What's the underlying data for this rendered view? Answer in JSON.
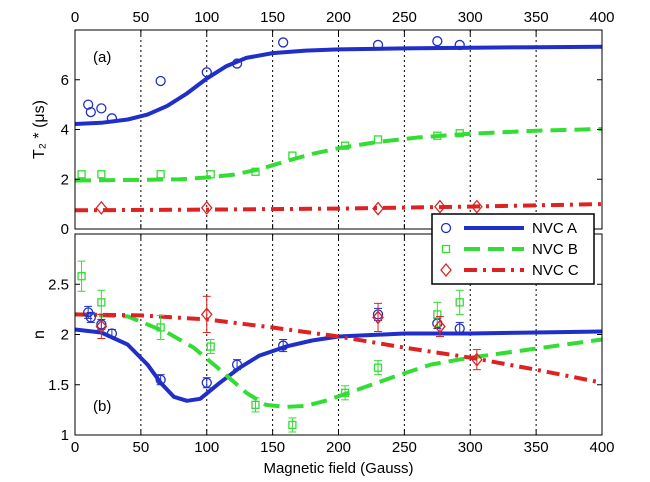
{
  "colors": {
    "nvc_a": "#1f2fc8",
    "nvc_b": "#33dd33",
    "nvc_c": "#dd2222",
    "axes": "#000000",
    "vgrid": "#000000"
  },
  "chart_data": [
    {
      "type": "scatter",
      "panel_label": "(a)",
      "xlabel": "",
      "ylabel": "T₂ * (μs)",
      "xlim": [
        0,
        400
      ],
      "ylim": [
        0,
        8
      ],
      "xticks": [
        "0",
        "50",
        "100",
        "150",
        "200",
        "250",
        "300",
        "350",
        "400"
      ],
      "yticks": [
        "0",
        "2",
        "4",
        "6"
      ],
      "x_ticks_on_top": true,
      "vertical_dotted_lines_at": [
        50,
        100,
        150,
        200,
        250,
        300,
        350
      ],
      "series": [
        {
          "key": "A",
          "marker": "circle",
          "points": [
            [
              10,
              5.0
            ],
            [
              12,
              4.7
            ],
            [
              20,
              4.85
            ],
            [
              28,
              4.45
            ],
            [
              65,
              5.95
            ],
            [
              100,
              6.3
            ],
            [
              123,
              6.65
            ],
            [
              158,
              7.5
            ],
            [
              230,
              7.4
            ],
            [
              275,
              7.55
            ],
            [
              292,
              7.4
            ]
          ],
          "fit": [
            [
              0,
              4.22
            ],
            [
              20,
              4.27
            ],
            [
              40,
              4.4
            ],
            [
              55,
              4.6
            ],
            [
              70,
              4.95
            ],
            [
              85,
              5.45
            ],
            [
              100,
              6.05
            ],
            [
              115,
              6.55
            ],
            [
              130,
              6.88
            ],
            [
              150,
              7.07
            ],
            [
              175,
              7.17
            ],
            [
              200,
              7.22
            ],
            [
              250,
              7.26
            ],
            [
              300,
              7.29
            ],
            [
              350,
              7.31
            ],
            [
              400,
              7.33
            ]
          ]
        },
        {
          "key": "B",
          "marker": "square",
          "points": [
            [
              5,
              2.2
            ],
            [
              20,
              2.2
            ],
            [
              65,
              2.2
            ],
            [
              103,
              2.2
            ],
            [
              137,
              2.3
            ],
            [
              165,
              2.95
            ],
            [
              205,
              3.35
            ],
            [
              230,
              3.6
            ],
            [
              275,
              3.75
            ],
            [
              292,
              3.85
            ]
          ],
          "fit": [
            [
              0,
              1.95
            ],
            [
              40,
              1.97
            ],
            [
              80,
              2.0
            ],
            [
              100,
              2.07
            ],
            [
              120,
              2.18
            ],
            [
              140,
              2.4
            ],
            [
              160,
              2.72
            ],
            [
              180,
              3.02
            ],
            [
              200,
              3.25
            ],
            [
              230,
              3.5
            ],
            [
              260,
              3.68
            ],
            [
              300,
              3.83
            ],
            [
              350,
              3.95
            ],
            [
              400,
              4.02
            ]
          ]
        },
        {
          "key": "C",
          "marker": "diamond",
          "points": [
            [
              20,
              0.85
            ],
            [
              100,
              0.85
            ],
            [
              230,
              0.82
            ],
            [
              277,
              0.9
            ],
            [
              305,
              0.9
            ]
          ],
          "fit": [
            [
              0,
              0.75
            ],
            [
              100,
              0.78
            ],
            [
              200,
              0.82
            ],
            [
              300,
              0.9
            ],
            [
              400,
              1.0
            ]
          ]
        }
      ]
    },
    {
      "type": "scatter",
      "panel_label": "(b)",
      "xlabel": "Magnetic field (Gauss)",
      "ylabel": "n",
      "xlim": [
        0,
        400
      ],
      "ylim": [
        1,
        3
      ],
      "xticks": [
        "0",
        "50",
        "100",
        "150",
        "200",
        "250",
        "300",
        "350",
        "400"
      ],
      "yticks": [
        "1",
        "1.5",
        "2",
        "2.5"
      ],
      "vertical_dotted_lines_at": [
        50,
        100,
        150,
        200,
        250,
        300,
        350
      ],
      "legend": {
        "location": "top-right",
        "entries": [
          "NVC A",
          "NVC B",
          "NVC C"
        ]
      },
      "series": [
        {
          "key": "A",
          "name": "NVC A",
          "marker": "circle",
          "points": [
            [
              10,
              2.22,
              0.06
            ],
            [
              12,
              2.17,
              0.05
            ],
            [
              20,
              2.1,
              0.05
            ],
            [
              28,
              2.01,
              0.04
            ],
            [
              65,
              1.55,
              0.05
            ],
            [
              100,
              1.52,
              0.05
            ],
            [
              123,
              1.7,
              0.05
            ],
            [
              158,
              1.89,
              0.06
            ],
            [
              230,
              2.2,
              0.06
            ],
            [
              275,
              2.11,
              0.05
            ],
            [
              292,
              2.06,
              0.06
            ]
          ],
          "fit": [
            [
              0,
              2.05
            ],
            [
              20,
              2.02
            ],
            [
              40,
              1.9
            ],
            [
              55,
              1.7
            ],
            [
              65,
              1.52
            ],
            [
              75,
              1.38
            ],
            [
              85,
              1.34
            ],
            [
              95,
              1.36
            ],
            [
              110,
              1.52
            ],
            [
              125,
              1.67
            ],
            [
              140,
              1.79
            ],
            [
              160,
              1.88
            ],
            [
              180,
              1.94
            ],
            [
              200,
              1.98
            ],
            [
              250,
              2.01
            ],
            [
              300,
              2.01
            ],
            [
              350,
              2.02
            ],
            [
              400,
              2.03
            ]
          ]
        },
        {
          "key": "B",
          "name": "NVC B",
          "marker": "square",
          "points": [
            [
              5,
              2.58,
              0.15
            ],
            [
              20,
              2.32,
              0.12
            ],
            [
              65,
              2.07,
              0.12
            ],
            [
              103,
              1.88,
              0.07
            ],
            [
              137,
              1.3,
              0.07
            ],
            [
              165,
              1.1,
              0.07
            ],
            [
              205,
              1.42,
              0.07
            ],
            [
              230,
              1.67,
              0.07
            ],
            [
              275,
              2.2,
              0.12
            ],
            [
              292,
              2.32,
              0.12
            ]
          ],
          "fit": [
            [
              0,
              2.2
            ],
            [
              40,
              2.18
            ],
            [
              70,
              2.02
            ],
            [
              90,
              1.87
            ],
            [
              110,
              1.65
            ],
            [
              130,
              1.42
            ],
            [
              145,
              1.3
            ],
            [
              160,
              1.28
            ],
            [
              175,
              1.29
            ],
            [
              190,
              1.34
            ],
            [
              210,
              1.43
            ],
            [
              240,
              1.57
            ],
            [
              270,
              1.7
            ],
            [
              300,
              1.77
            ],
            [
              350,
              1.86
            ],
            [
              400,
              1.95
            ]
          ]
        },
        {
          "key": "C",
          "name": "NVC C",
          "marker": "diamond",
          "points": [
            [
              20,
              2.08,
              0.12
            ],
            [
              100,
              2.2,
              0.18
            ],
            [
              230,
              2.17,
              0.14
            ],
            [
              277,
              2.08,
              0.1
            ],
            [
              305,
              1.75,
              0.1
            ]
          ],
          "fit": [
            [
              0,
              2.2
            ],
            [
              50,
              2.19
            ],
            [
              100,
              2.15
            ],
            [
              150,
              2.07
            ],
            [
              200,
              1.98
            ],
            [
              250,
              1.87
            ],
            [
              300,
              1.77
            ],
            [
              350,
              1.65
            ],
            [
              400,
              1.52
            ]
          ]
        }
      ]
    }
  ]
}
